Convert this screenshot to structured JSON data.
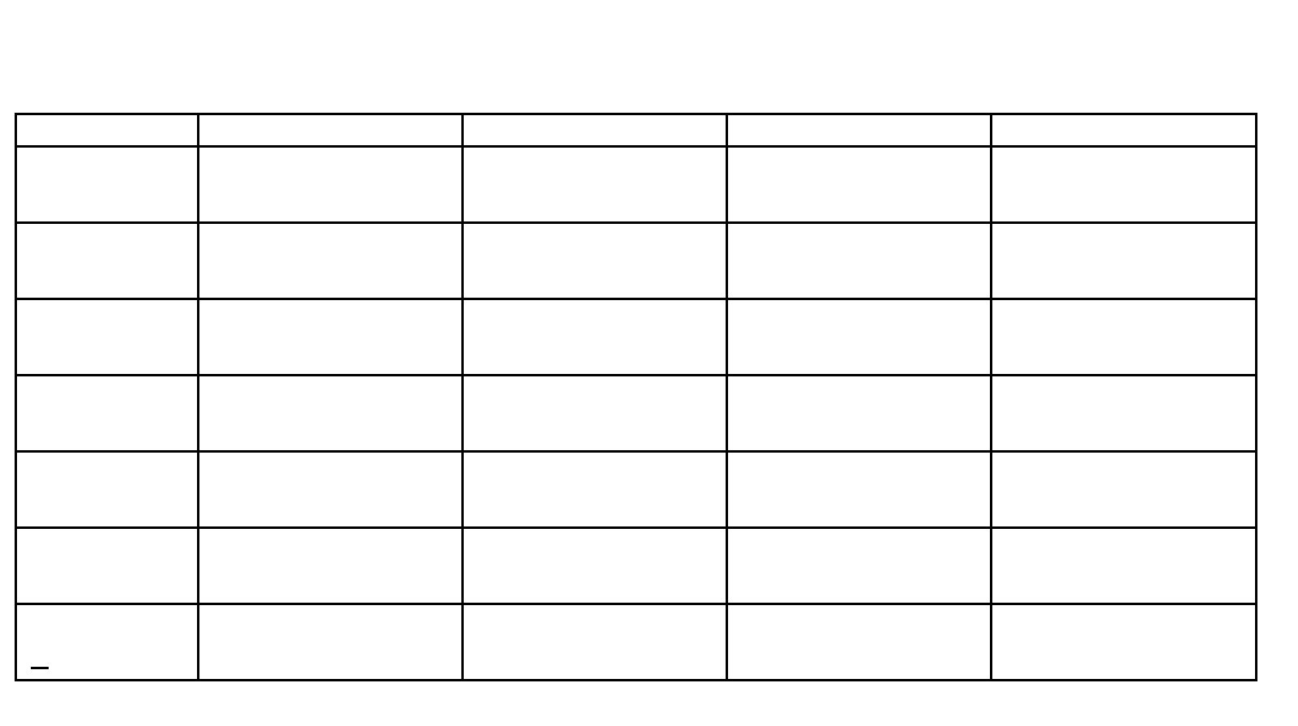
{
  "table": {
    "header": [
      "",
      "",
      "",
      "",
      ""
    ],
    "rows": [
      [
        "",
        "",
        "",
        "",
        ""
      ],
      [
        "",
        "",
        "",
        "",
        ""
      ],
      [
        "",
        "",
        "",
        "",
        ""
      ],
      [
        "",
        "",
        "",
        "",
        ""
      ],
      [
        "",
        "",
        "",
        "",
        ""
      ],
      [
        "",
        "",
        "",
        "",
        ""
      ],
      [
        "",
        "",
        "",
        "",
        ""
      ]
    ]
  }
}
